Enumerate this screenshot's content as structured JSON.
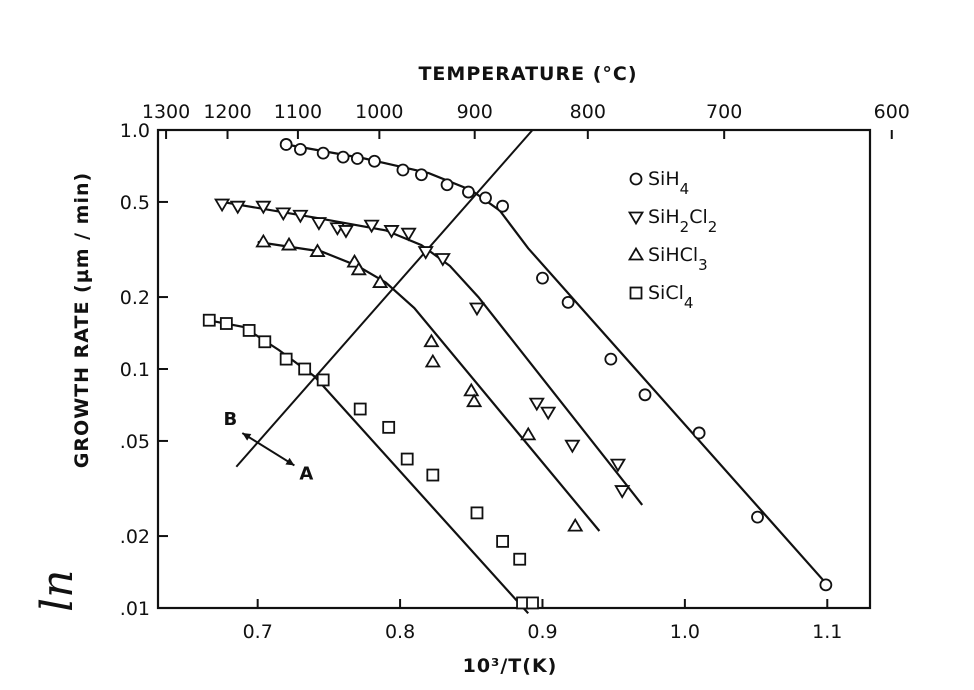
{
  "chart_data": {
    "type": "scatter",
    "title": "",
    "xlabel": "10³/T(K)",
    "ylabel": "GROWTH RATE (µm / min)",
    "ylabel_prefix": "ln",
    "top_axis_label": "TEMPERATURE (°C)",
    "yscale": "log",
    "xlim": [
      0.63,
      1.13
    ],
    "ylim": [
      0.01,
      1.0
    ],
    "x_ticks": [
      0.7,
      0.8,
      0.9,
      1.0,
      1.1
    ],
    "x_tick_labels": [
      "0.7",
      "0.8",
      "0.9",
      "1.0",
      "1.1"
    ],
    "y_ticks": [
      0.01,
      0.02,
      0.05,
      0.1,
      0.2,
      0.5,
      1.0
    ],
    "y_tick_labels": [
      ".01",
      ".02",
      ".05",
      "0.1",
      "0.2",
      "0.5",
      "1.0"
    ],
    "top_ticks": [
      1300,
      1200,
      1100,
      1000,
      900,
      800,
      700,
      600
    ],
    "top_tick_labels": [
      "1300",
      "1200",
      "1100",
      "1000",
      "900",
      "800",
      "700",
      "600"
    ],
    "legend_position": "top-right",
    "series": [
      {
        "name": "SiH4",
        "marker": "circle",
        "points": [
          [
            0.72,
            0.87
          ],
          [
            0.73,
            0.83
          ],
          [
            0.746,
            0.8
          ],
          [
            0.76,
            0.77
          ],
          [
            0.77,
            0.76
          ],
          [
            0.782,
            0.74
          ],
          [
            0.802,
            0.68
          ],
          [
            0.815,
            0.65
          ],
          [
            0.833,
            0.59
          ],
          [
            0.848,
            0.55
          ],
          [
            0.86,
            0.52
          ],
          [
            0.872,
            0.48
          ],
          [
            0.9,
            0.24
          ],
          [
            0.918,
            0.19
          ],
          [
            0.948,
            0.11
          ],
          [
            0.972,
            0.078
          ],
          [
            1.01,
            0.054
          ],
          [
            1.051,
            0.024
          ],
          [
            1.099,
            0.0125
          ]
        ],
        "fit_line": [
          [
            0.72,
            0.87
          ],
          [
            0.775,
            0.76
          ],
          [
            0.82,
            0.66
          ],
          [
            0.85,
            0.56
          ],
          [
            0.87,
            0.46
          ],
          [
            0.89,
            0.32
          ],
          [
            1.1,
            0.0125
          ]
        ]
      },
      {
        "name": "SiH2Cl2",
        "marker": "triangle-down",
        "points": [
          [
            0.675,
            0.49
          ],
          [
            0.686,
            0.48
          ],
          [
            0.704,
            0.48
          ],
          [
            0.718,
            0.45
          ],
          [
            0.73,
            0.44
          ],
          [
            0.743,
            0.41
          ],
          [
            0.756,
            0.39
          ],
          [
            0.762,
            0.38
          ],
          [
            0.78,
            0.4
          ],
          [
            0.794,
            0.38
          ],
          [
            0.806,
            0.37
          ],
          [
            0.818,
            0.31
          ],
          [
            0.83,
            0.29
          ],
          [
            0.854,
            0.18
          ],
          [
            0.896,
            0.072
          ],
          [
            0.904,
            0.066
          ],
          [
            0.921,
            0.048
          ],
          [
            0.953,
            0.04
          ],
          [
            0.956,
            0.031
          ]
        ],
        "fit_line": [
          [
            0.675,
            0.5
          ],
          [
            0.74,
            0.43
          ],
          [
            0.79,
            0.38
          ],
          [
            0.815,
            0.33
          ],
          [
            0.835,
            0.27
          ],
          [
            0.855,
            0.2
          ],
          [
            0.97,
            0.027
          ]
        ]
      },
      {
        "name": "SiHCl3",
        "marker": "triangle-up",
        "points": [
          [
            0.704,
            0.34
          ],
          [
            0.722,
            0.33
          ],
          [
            0.742,
            0.31
          ],
          [
            0.768,
            0.28
          ],
          [
            0.771,
            0.26
          ],
          [
            0.786,
            0.23
          ],
          [
            0.822,
            0.13
          ],
          [
            0.823,
            0.107
          ],
          [
            0.85,
            0.081
          ],
          [
            0.852,
            0.073
          ],
          [
            0.89,
            0.053
          ],
          [
            0.923,
            0.022
          ]
        ],
        "fit_line": [
          [
            0.7,
            0.34
          ],
          [
            0.745,
            0.31
          ],
          [
            0.77,
            0.27
          ],
          [
            0.79,
            0.23
          ],
          [
            0.81,
            0.18
          ],
          [
            0.94,
            0.021
          ]
        ]
      },
      {
        "name": "SiCl4",
        "marker": "square",
        "points": [
          [
            0.666,
            0.16
          ],
          [
            0.678,
            0.155
          ],
          [
            0.694,
            0.145
          ],
          [
            0.705,
            0.13
          ],
          [
            0.72,
            0.11
          ],
          [
            0.733,
            0.1
          ],
          [
            0.746,
            0.09
          ],
          [
            0.772,
            0.068
          ],
          [
            0.792,
            0.057
          ],
          [
            0.805,
            0.042
          ],
          [
            0.823,
            0.036
          ],
          [
            0.854,
            0.025
          ],
          [
            0.872,
            0.019
          ],
          [
            0.884,
            0.016
          ],
          [
            0.886,
            0.0105
          ],
          [
            0.893,
            0.0105
          ]
        ],
        "fit_line": [
          [
            0.665,
            0.16
          ],
          [
            0.69,
            0.15
          ],
          [
            0.715,
            0.12
          ],
          [
            0.74,
            0.093
          ],
          [
            0.89,
            0.0095
          ]
        ]
      }
    ],
    "reference_line": [
      [
        0.685,
        0.039
      ],
      [
        0.893,
        1.0
      ]
    ],
    "annotations": [
      {
        "text": "B",
        "x": 0.685,
        "y": 0.055
      },
      {
        "text": "A",
        "x": 0.73,
        "y": 0.038
      }
    ]
  }
}
